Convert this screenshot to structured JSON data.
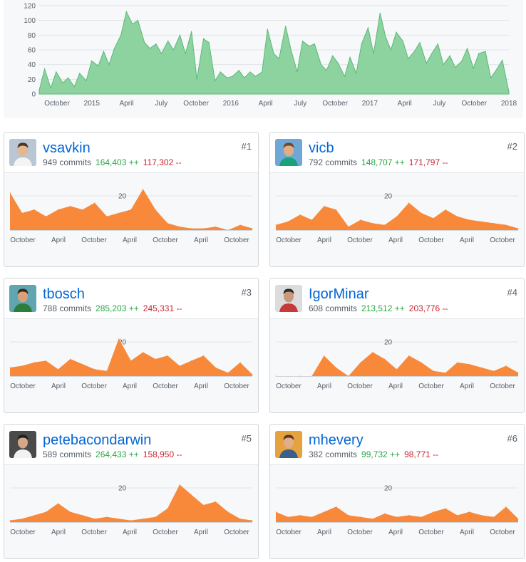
{
  "chart_data": [
    {
      "type": "area",
      "color": "#8cd3a0",
      "line_color": "#5cb877",
      "ylim": [
        0,
        120
      ],
      "y_ticks": [
        "0",
        "20",
        "40",
        "60",
        "80",
        "100",
        "120"
      ],
      "x_ticks": [
        "October",
        "2015",
        "April",
        "July",
        "October",
        "2016",
        "April",
        "July",
        "October",
        "2017",
        "April",
        "July",
        "October",
        "2018"
      ],
      "x_range": [
        "2014-09-01",
        "2018-01-01"
      ],
      "x": [
        "2014-09-01",
        "2014-09-15",
        "2014-10-01",
        "2014-10-15",
        "2014-11-01",
        "2014-11-15",
        "2014-12-01",
        "2014-12-15",
        "2015-01-01",
        "2015-01-15",
        "2015-02-01",
        "2015-02-15",
        "2015-03-01",
        "2015-03-15",
        "2015-04-01",
        "2015-04-15",
        "2015-05-01",
        "2015-05-15",
        "2015-06-01",
        "2015-06-15",
        "2015-07-01",
        "2015-07-15",
        "2015-08-01",
        "2015-08-15",
        "2015-09-01",
        "2015-09-15",
        "2015-10-01",
        "2015-10-15",
        "2015-11-01",
        "2015-11-15",
        "2015-12-01",
        "2015-12-15",
        "2016-01-01",
        "2016-01-15",
        "2016-02-01",
        "2016-02-15",
        "2016-03-01",
        "2016-03-15",
        "2016-04-01",
        "2016-04-15",
        "2016-05-01",
        "2016-05-15",
        "2016-06-01",
        "2016-06-15",
        "2016-07-01",
        "2016-07-15",
        "2016-08-01",
        "2016-08-15",
        "2016-09-01",
        "2016-09-15",
        "2016-10-01",
        "2016-10-15",
        "2016-11-01",
        "2016-11-15",
        "2016-12-01",
        "2016-12-15",
        "2017-01-01",
        "2017-01-15",
        "2017-02-01",
        "2017-02-15",
        "2017-03-01",
        "2017-03-15",
        "2017-04-01",
        "2017-04-15",
        "2017-05-01",
        "2017-05-15",
        "2017-06-01",
        "2017-06-15",
        "2017-07-01",
        "2017-07-15",
        "2017-08-01",
        "2017-08-15",
        "2017-09-01",
        "2017-09-15",
        "2017-10-01",
        "2017-10-15",
        "2017-11-01",
        "2017-11-15",
        "2017-12-01",
        "2017-12-15",
        "2018-01-01"
      ],
      "values": [
        5,
        34,
        8,
        30,
        15,
        22,
        10,
        28,
        18,
        45,
        38,
        58,
        40,
        62,
        80,
        112,
        95,
        100,
        70,
        62,
        68,
        55,
        72,
        60,
        80,
        55,
        85,
        20,
        75,
        70,
        18,
        30,
        22,
        24,
        32,
        22,
        30,
        24,
        30,
        88,
        55,
        48,
        92,
        60,
        30,
        72,
        65,
        68,
        40,
        32,
        52,
        42,
        24,
        50,
        28,
        68,
        90,
        55,
        110,
        78,
        60,
        84,
        72,
        48,
        58,
        70,
        42,
        55,
        68,
        40,
        52,
        36,
        45,
        62,
        35,
        55,
        58,
        22,
        34,
        46,
        3
      ]
    }
  ],
  "card_x_ticks": [
    "October",
    "April",
    "October",
    "April",
    "October",
    "April",
    "October"
  ],
  "card_gridline_label": "20",
  "contributors": [
    {
      "login": "vsavkin",
      "commits": "949 commits",
      "additions": "164,403 ++",
      "deletions": "117,302 --",
      "rank": "#1",
      "avatar": {
        "name": "vsavkin-avatar",
        "bg": "#b9c6d3",
        "skin": "#e3b792",
        "hair": "#4a3424",
        "shirt": "#f4f4f4"
      },
      "chart_data": {
        "type": "area",
        "color": "#f9893a",
        "ylim": [
          0,
          30
        ],
        "x_range": [
          "2014-09-01",
          "2018-01-01"
        ],
        "x": [
          "2014-09-01",
          "2014-11-01",
          "2015-01-01",
          "2015-03-01",
          "2015-05-01",
          "2015-07-01",
          "2015-09-01",
          "2015-11-01",
          "2016-01-01",
          "2016-03-01",
          "2016-05-01",
          "2016-07-01",
          "2016-09-01",
          "2016-11-01",
          "2017-01-01",
          "2017-03-01",
          "2017-05-01",
          "2017-07-01",
          "2017-09-01",
          "2017-11-01",
          "2018-01-01"
        ],
        "values": [
          22,
          10,
          12,
          8,
          12,
          14,
          12,
          16,
          8,
          10,
          12,
          24,
          12,
          4,
          2,
          1,
          1,
          2,
          0,
          3,
          1
        ]
      }
    },
    {
      "login": "vicb",
      "commits": "792 commits",
      "additions": "148,707 ++",
      "deletions": "171,797 --",
      "rank": "#2",
      "avatar": {
        "name": "vicb-avatar",
        "bg": "#6fa8d6",
        "skin": "#e0ae82",
        "hair": "#6b4a2a",
        "shirt": "#1aa37a"
      },
      "chart_data": {
        "type": "area",
        "color": "#f9893a",
        "ylim": [
          0,
          30
        ],
        "x_range": [
          "2014-09-01",
          "2018-01-01"
        ],
        "x": [
          "2014-09-01",
          "2014-11-01",
          "2015-01-01",
          "2015-03-01",
          "2015-05-01",
          "2015-07-01",
          "2015-09-01",
          "2015-11-01",
          "2016-01-01",
          "2016-03-01",
          "2016-05-01",
          "2016-07-01",
          "2016-09-01",
          "2016-11-01",
          "2017-01-01",
          "2017-03-01",
          "2017-05-01",
          "2017-07-01",
          "2017-09-01",
          "2017-11-01",
          "2018-01-01"
        ],
        "values": [
          3,
          5,
          9,
          6,
          14,
          12,
          2,
          6,
          4,
          3,
          8,
          16,
          10,
          7,
          12,
          8,
          6,
          5,
          4,
          3,
          1
        ]
      }
    },
    {
      "login": "tbosch",
      "commits": "788 commits",
      "additions": "285,203 ++",
      "deletions": "245,331 --",
      "rank": "#3",
      "avatar": {
        "name": "tbosch-avatar",
        "bg": "#5fa6b0",
        "skin": "#d9a07a",
        "hair": "#3a2a1c",
        "shirt": "#2d7e3c"
      },
      "chart_data": {
        "type": "area",
        "color": "#f9893a",
        "ylim": [
          0,
          30
        ],
        "x_range": [
          "2014-09-01",
          "2018-01-01"
        ],
        "x": [
          "2014-09-01",
          "2014-11-01",
          "2015-01-01",
          "2015-03-01",
          "2015-05-01",
          "2015-07-01",
          "2015-09-01",
          "2015-11-01",
          "2016-01-01",
          "2016-03-01",
          "2016-05-01",
          "2016-07-01",
          "2016-09-01",
          "2016-11-01",
          "2017-01-01",
          "2017-03-01",
          "2017-05-01",
          "2017-07-01",
          "2017-09-01",
          "2017-11-01",
          "2018-01-01"
        ],
        "values": [
          5,
          6,
          8,
          9,
          4,
          10,
          7,
          4,
          3,
          22,
          9,
          14,
          10,
          12,
          6,
          9,
          12,
          5,
          2,
          8,
          1
        ]
      }
    },
    {
      "login": "IgorMinar",
      "commits": "608 commits",
      "additions": "213,512 ++",
      "deletions": "203,776 --",
      "rank": "#4",
      "avatar": {
        "name": "IgorMinar-avatar",
        "bg": "#dcdcdc",
        "skin": "#c89a7a",
        "hair": "#2b2b2b",
        "shirt": "#c33b3b"
      },
      "chart_data": {
        "type": "area",
        "color": "#f9893a",
        "ylim": [
          0,
          30
        ],
        "x_range": [
          "2014-09-01",
          "2018-01-01"
        ],
        "x": [
          "2014-09-01",
          "2014-11-01",
          "2015-01-01",
          "2015-03-01",
          "2015-05-01",
          "2015-07-01",
          "2015-09-01",
          "2015-11-01",
          "2016-01-01",
          "2016-03-01",
          "2016-05-01",
          "2016-07-01",
          "2016-09-01",
          "2016-11-01",
          "2017-01-01",
          "2017-03-01",
          "2017-05-01",
          "2017-07-01",
          "2017-09-01",
          "2017-11-01",
          "2018-01-01"
        ],
        "values": [
          0,
          0,
          0,
          0,
          12,
          5,
          0,
          8,
          14,
          10,
          4,
          12,
          8,
          3,
          2,
          8,
          7,
          5,
          3,
          6,
          2
        ]
      }
    },
    {
      "login": "petebacondarwin",
      "commits": "589 commits",
      "additions": "264,433 ++",
      "deletions": "158,950 --",
      "rank": "#5",
      "avatar": {
        "name": "petebacondarwin-avatar",
        "bg": "#4a4a4a",
        "skin": "#d4a788",
        "hair": "#1f1f1f",
        "shirt": "#f2f2f2"
      },
      "chart_data": {
        "type": "area",
        "color": "#f9893a",
        "ylim": [
          0,
          30
        ],
        "x_range": [
          "2014-09-01",
          "2018-01-01"
        ],
        "x": [
          "2014-09-01",
          "2014-11-01",
          "2015-01-01",
          "2015-03-01",
          "2015-05-01",
          "2015-07-01",
          "2015-09-01",
          "2015-11-01",
          "2016-01-01",
          "2016-03-01",
          "2016-05-01",
          "2016-07-01",
          "2016-09-01",
          "2016-11-01",
          "2017-01-01",
          "2017-03-01",
          "2017-05-01",
          "2017-07-01",
          "2017-09-01",
          "2017-11-01",
          "2018-01-01"
        ],
        "values": [
          1,
          2,
          4,
          6,
          11,
          6,
          4,
          2,
          3,
          2,
          1,
          2,
          3,
          8,
          22,
          16,
          10,
          12,
          6,
          2,
          1
        ]
      }
    },
    {
      "login": "mhevery",
      "commits": "382 commits",
      "additions": "99,732 ++",
      "deletions": "98,771 --",
      "rank": "#6",
      "avatar": {
        "name": "mhevery-avatar",
        "bg": "#e6a23c",
        "skin": "#e2ad88",
        "hair": "#5a3b22",
        "shirt": "#3a5f8a"
      },
      "chart_data": {
        "type": "area",
        "color": "#f9893a",
        "ylim": [
          0,
          30
        ],
        "x_range": [
          "2014-09-01",
          "2018-01-01"
        ],
        "x": [
          "2014-09-01",
          "2014-11-01",
          "2015-01-01",
          "2015-03-01",
          "2015-05-01",
          "2015-07-01",
          "2015-09-01",
          "2015-11-01",
          "2016-01-01",
          "2016-03-01",
          "2016-05-01",
          "2016-07-01",
          "2016-09-01",
          "2016-11-01",
          "2017-01-01",
          "2017-03-01",
          "2017-05-01",
          "2017-07-01",
          "2017-09-01",
          "2017-11-01",
          "2018-01-01"
        ],
        "values": [
          6,
          3,
          4,
          3,
          6,
          9,
          4,
          3,
          2,
          5,
          3,
          4,
          3,
          6,
          8,
          4,
          6,
          4,
          3,
          9,
          2
        ]
      }
    }
  ]
}
